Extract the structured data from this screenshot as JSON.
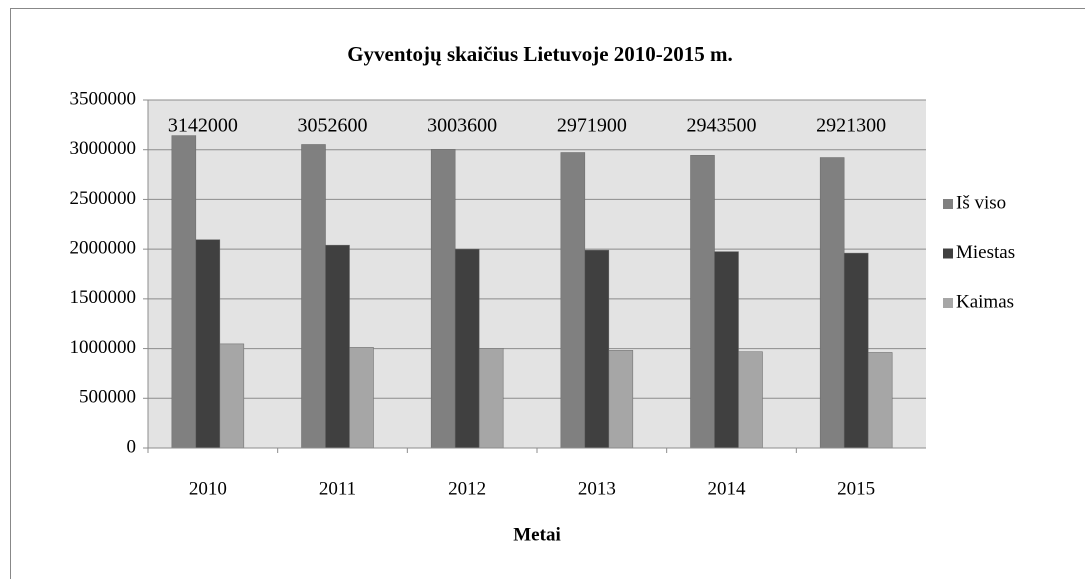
{
  "chart_data": {
    "type": "bar",
    "title": "Gyventojų skaičius Lietuvoje 2010-2015 m.",
    "x_label": "Metai",
    "categories": [
      "2010",
      "2011",
      "2012",
      "2013",
      "2014",
      "2015"
    ],
    "series": [
      {
        "name": "Iš viso",
        "color": "#808080",
        "values": [
          3142000,
          3052600,
          3003600,
          2971900,
          2943500,
          2921300
        ],
        "data_labels": true
      },
      {
        "name": "Miestas",
        "color": "#404040",
        "values": [
          2095000,
          2040000,
          2000000,
          1990000,
          1975000,
          1960000
        ]
      },
      {
        "name": "Kaimas",
        "color": "#a6a6a6",
        "values": [
          1047000,
          1012000,
          1003000,
          982000,
          968000,
          961000
        ]
      }
    ],
    "ylim": [
      0,
      3500000
    ],
    "yticks": [
      0,
      500000,
      1000000,
      1500000,
      2000000,
      2500000,
      3000000,
      3500000
    ],
    "grid": true,
    "legend": "right"
  }
}
